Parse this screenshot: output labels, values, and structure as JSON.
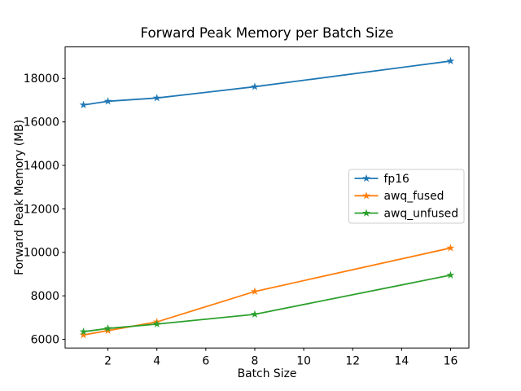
{
  "chart_data": {
    "type": "line",
    "title": "Forward Peak Memory per Batch Size",
    "xlabel": "Batch Size",
    "ylabel": "Forward Peak Memory (MB)",
    "x": [
      1,
      2,
      4,
      8,
      16
    ],
    "series": [
      {
        "name": "fp16",
        "color": "#1f77b4",
        "marker": "star",
        "values": [
          16780,
          16950,
          17100,
          17620,
          18800
        ]
      },
      {
        "name": "awq_fused",
        "color": "#ff7f0e",
        "marker": "star",
        "values": [
          6200,
          6400,
          6800,
          8200,
          10200
        ]
      },
      {
        "name": "awq_unfused",
        "color": "#2ca02c",
        "marker": "star",
        "values": [
          6350,
          6500,
          6700,
          7150,
          8950
        ]
      }
    ],
    "xticks": [
      2,
      4,
      6,
      8,
      10,
      12,
      14,
      16
    ],
    "yticks": [
      6000,
      8000,
      10000,
      12000,
      14000,
      16000,
      18000
    ],
    "xlim": [
      0.25,
      16.75
    ],
    "ylim": [
      5600,
      19450
    ],
    "grid": false,
    "legend_position": "center right",
    "axes_color": "#000000",
    "legend_border_color": "#cccccc",
    "background": "#ffffff"
  }
}
